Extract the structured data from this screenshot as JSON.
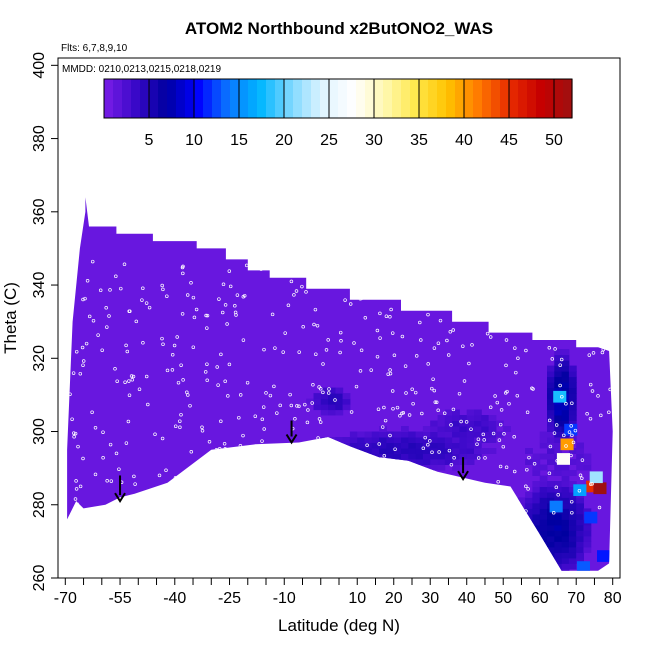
{
  "chart_data": {
    "type": "heatmap",
    "title": "ATOM2 Northbound x2ButONO2_WAS",
    "flights_note": "Flts: 6,7,8,9,10",
    "dates_note": "MMDD: 0210,0213,0215,0218,0219",
    "xlabel": "Latitude (deg N)",
    "ylabel": "Theta (C)",
    "xlim": [
      -72,
      82
    ],
    "ylim": [
      260,
      402
    ],
    "x_ticks": [
      "-70",
      "-55",
      "-40",
      "-25",
      "-10",
      "10",
      "20",
      "30",
      "40",
      "50",
      "60",
      "70",
      "80"
    ],
    "x_tick_values": [
      -70,
      -55,
      -40,
      -25,
      -10,
      10,
      20,
      30,
      40,
      50,
      60,
      70,
      80
    ],
    "x_minor_ticks": [
      -65,
      -60,
      -50,
      -45,
      -35,
      -30,
      -20,
      -15,
      -5,
      0,
      5,
      15,
      25,
      35,
      45,
      55,
      65,
      75
    ],
    "y_ticks": [
      "260",
      "280",
      "300",
      "320",
      "340",
      "360",
      "380",
      "400"
    ],
    "y_tick_values": [
      260,
      280,
      300,
      320,
      340,
      360,
      380,
      400
    ],
    "colorbar": {
      "range": [
        0,
        52
      ],
      "ticks": [
        "5",
        "10",
        "15",
        "20",
        "25",
        "30",
        "35",
        "40",
        "45",
        "50"
      ],
      "tick_values": [
        5,
        10,
        15,
        20,
        25,
        30,
        35,
        40,
        45,
        50
      ],
      "colors": [
        "#7a1de8",
        "#3a08c8",
        "#0000a0",
        "#0000ff",
        "#0a78ff",
        "#00b6ff",
        "#7fd8ff",
        "#dff4ff",
        "#ffffff",
        "#fff8b0",
        "#ffe84a",
        "#ffc300",
        "#ff7a00",
        "#e82b00",
        "#c60000",
        "#9e1010"
      ]
    },
    "coverage_outline": [
      [
        -69.5,
        276
      ],
      [
        -69.5,
        295
      ],
      [
        -68,
        330
      ],
      [
        -66,
        350
      ],
      [
        -64.5,
        360
      ],
      [
        -64.5,
        364
      ],
      [
        -63.5,
        356
      ],
      [
        -56,
        356
      ],
      [
        -56,
        354
      ],
      [
        -46,
        354
      ],
      [
        -46,
        352
      ],
      [
        -34,
        352
      ],
      [
        -34,
        350
      ],
      [
        -26,
        350
      ],
      [
        -26,
        347
      ],
      [
        -20,
        347
      ],
      [
        -20,
        344
      ],
      [
        -14,
        344
      ],
      [
        -14,
        342
      ],
      [
        -4,
        342
      ],
      [
        -4,
        339
      ],
      [
        8,
        339
      ],
      [
        8,
        336
      ],
      [
        22,
        336
      ],
      [
        22,
        333
      ],
      [
        36,
        333
      ],
      [
        36,
        330
      ],
      [
        46,
        330
      ],
      [
        46,
        327
      ],
      [
        58,
        327
      ],
      [
        58,
        325
      ],
      [
        70,
        325
      ],
      [
        70,
        323
      ],
      [
        76,
        323
      ],
      [
        79,
        322
      ],
      [
        80,
        300
      ],
      [
        79.5,
        282
      ],
      [
        79,
        264
      ],
      [
        76,
        262
      ],
      [
        66,
        262
      ],
      [
        60,
        272
      ],
      [
        52,
        285
      ],
      [
        45,
        286
      ],
      [
        32,
        289
      ],
      [
        24,
        292
      ],
      [
        16,
        293
      ],
      [
        8,
        296
      ],
      [
        2,
        298.5
      ],
      [
        -6,
        297
      ],
      [
        -18,
        296.5
      ],
      [
        -30,
        295
      ],
      [
        -42,
        286
      ],
      [
        -51,
        283
      ],
      [
        -55,
        282
      ],
      [
        -59,
        280
      ],
      [
        -65,
        279
      ],
      [
        -67,
        281
      ],
      [
        -69.5,
        276
      ]
    ],
    "enhanced_regions": [
      {
        "x": [
          1,
          44
        ],
        "y": [
          290,
          300
        ],
        "value": 4
      },
      {
        "x": [
          -2,
          8
        ],
        "y": [
          305,
          312
        ],
        "value": 4
      },
      {
        "x": [
          30,
          50
        ],
        "y": [
          296,
          306
        ],
        "value": 3
      },
      {
        "x": [
          55,
          75
        ],
        "y": [
          285,
          300
        ],
        "value": 2
      },
      {
        "x": [
          55,
          73
        ],
        "y": [
          262,
          285
        ],
        "value": 6
      },
      {
        "x": [
          62,
          70
        ],
        "y": [
          298,
          320
        ],
        "value": 7
      }
    ],
    "hotspots": [
      {
        "x": 67.5,
        "y": 296.5,
        "value": 40
      },
      {
        "x": 66.5,
        "y": 292.5,
        "value": 28
      },
      {
        "x": 74.5,
        "y": 285.0,
        "value": 45
      },
      {
        "x": 76.5,
        "y": 284.5,
        "value": 52
      },
      {
        "x": 71.0,
        "y": 284.0,
        "value": 16
      },
      {
        "x": 75.5,
        "y": 287.5,
        "value": 22
      },
      {
        "x": 65.5,
        "y": 309.5,
        "value": 18
      },
      {
        "x": 68.5,
        "y": 300.5,
        "value": 12
      },
      {
        "x": 64.5,
        "y": 279.5,
        "value": 14
      },
      {
        "x": 74.0,
        "y": 276.5,
        "value": 12
      },
      {
        "x": 77.5,
        "y": 266.0,
        "value": 11
      },
      {
        "x": 72.0,
        "y": 263.0,
        "value": 13
      }
    ],
    "tropopause_arrows": [
      {
        "x": -55,
        "y_top": 288,
        "y_bottom": 281
      },
      {
        "x": -8,
        "y_top": 303,
        "y_bottom": 297
      },
      {
        "x": 39,
        "y_top": 293,
        "y_bottom": 287
      }
    ]
  }
}
